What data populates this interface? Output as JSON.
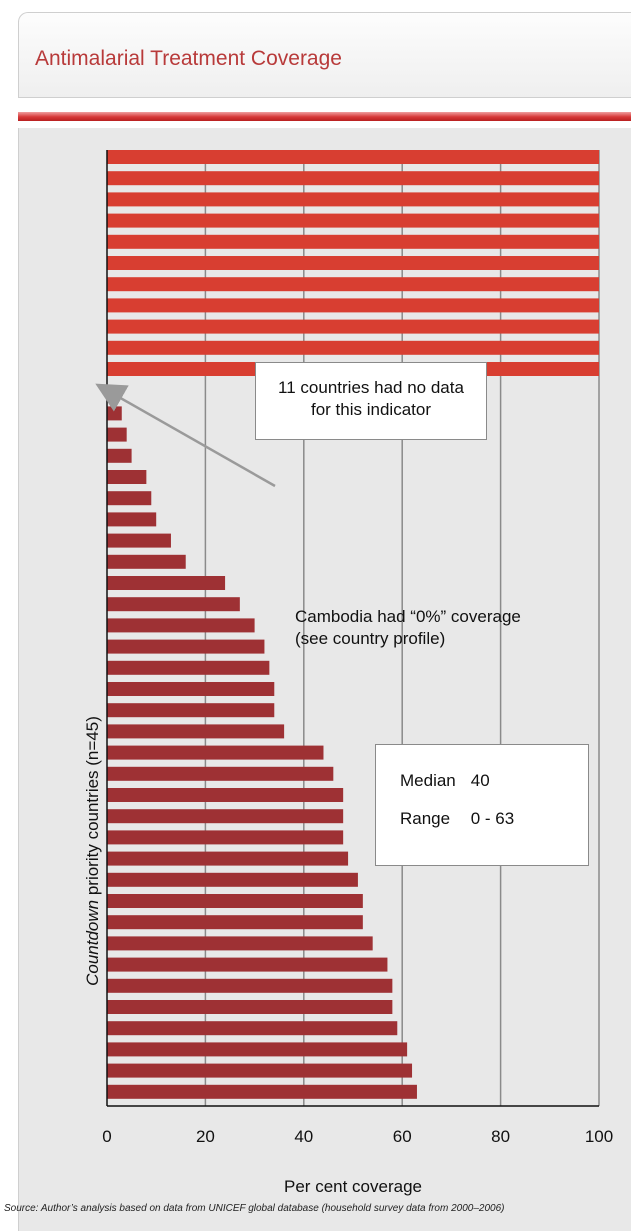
{
  "title": "Antimalarial Treatment Coverage",
  "colors": {
    "title": "#b83a3a",
    "no_data_bar": "#d83e31",
    "data_bar": "#9e3134",
    "panel_bg": "#e8e8e8",
    "grid": "#8a8a8a"
  },
  "no_data_note": "11 countries had no data for this indicator",
  "cambodia_note": {
    "line1": "Cambodia had “0%” coverage",
    "line2": "(see country profile)"
  },
  "stats": {
    "median_label": "Median",
    "median_value": "40",
    "range_label": "Range",
    "range_value": "0 - 63"
  },
  "y_axis_label": {
    "italic": "Countdown",
    "rest": " priority countries (n=45)"
  },
  "source": "Source: Author’s analysis based on data from UNICEF global database (household survey data from 2000–2006)",
  "chart_data": {
    "type": "bar",
    "orientation": "horizontal",
    "xlabel": "Per cent coverage",
    "ylabel": "Countdown priority countries (n=45)",
    "xlim": [
      0,
      100
    ],
    "x_ticks": [
      "0",
      "20",
      "40",
      "60",
      "80",
      "100"
    ],
    "grid": true,
    "no_data_count": 11,
    "values": [
      0,
      3,
      4,
      5,
      8,
      9,
      10,
      13,
      16,
      24,
      27,
      30,
      32,
      33,
      34,
      34,
      36,
      44,
      46,
      48,
      48,
      48,
      49,
      51,
      52,
      52,
      54,
      57,
      58,
      58,
      59,
      61,
      62,
      63
    ]
  }
}
